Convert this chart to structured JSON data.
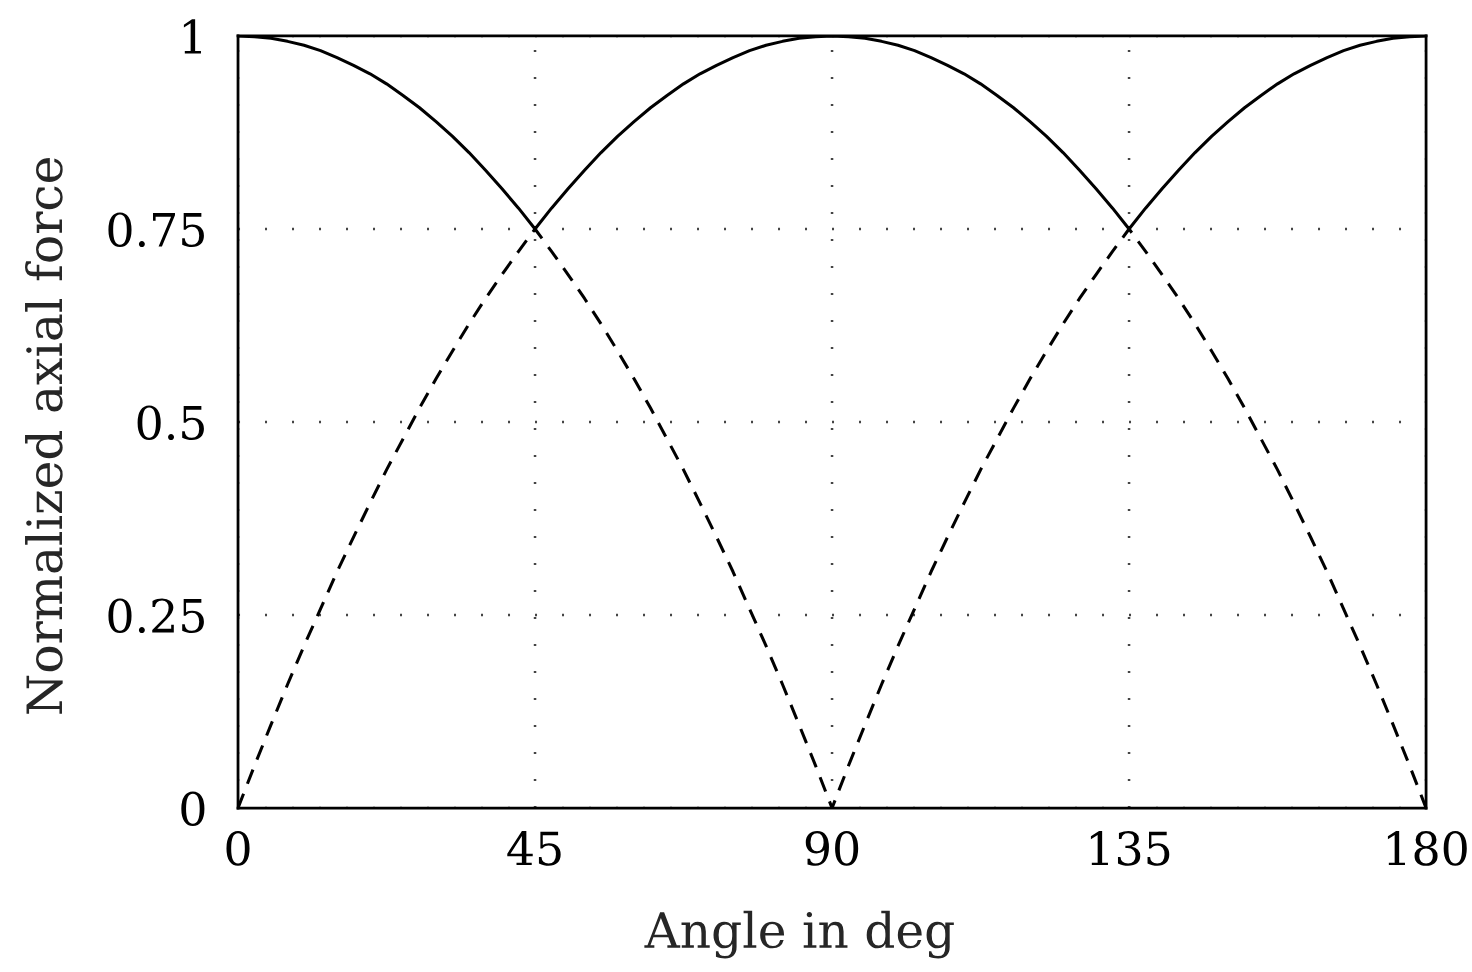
{
  "chart_data": {
    "type": "line",
    "xlabel": "Angle in deg",
    "ylabel": "Normalized axial force",
    "x": [
      0,
      2.5,
      5,
      7.5,
      10,
      12.5,
      15,
      17.5,
      20,
      22.5,
      25,
      27.5,
      30,
      32.5,
      35,
      37.5,
      40,
      42.5,
      45,
      47.5,
      50,
      52.5,
      55,
      57.5,
      60,
      62.5,
      65,
      67.5,
      70,
      72.5,
      75,
      77.5,
      80,
      82.5,
      85,
      87.5,
      90,
      92.5,
      95,
      97.5,
      100,
      102.5,
      105,
      107.5,
      110,
      112.5,
      115,
      117.5,
      120,
      122.5,
      125,
      127.5,
      130,
      132.5,
      135,
      137.5,
      140,
      142.5,
      145,
      147.5,
      150,
      152.5,
      155,
      157.5,
      160,
      162.5,
      165,
      167.5,
      170,
      172.5,
      175,
      177.5,
      180
    ],
    "series": [
      {
        "color": "#000000",
        "line_style": "solid",
        "values": [
          1,
          0.999,
          0.997,
          0.993,
          0.988,
          0.981,
          0.972,
          0.962,
          0.951,
          0.938,
          0.923,
          0.907,
          0.889,
          0.87,
          0.849,
          0.826,
          0.802,
          0.777,
          0.75,
          0.777,
          0.802,
          0.826,
          0.849,
          0.87,
          0.889,
          0.907,
          0.923,
          0.938,
          0.951,
          0.962,
          0.972,
          0.981,
          0.988,
          0.993,
          0.997,
          0.999,
          1,
          0.999,
          0.997,
          0.993,
          0.988,
          0.981,
          0.972,
          0.962,
          0.951,
          0.938,
          0.923,
          0.907,
          0.889,
          0.87,
          0.849,
          0.826,
          0.802,
          0.777,
          0.75,
          0.777,
          0.802,
          0.826,
          0.849,
          0.87,
          0.889,
          0.907,
          0.923,
          0.938,
          0.951,
          0.962,
          0.972,
          0.981,
          0.988,
          0.993,
          0.997,
          0.999,
          1
        ]
      },
      {
        "color": "#000000",
        "line_style": "dashed",
        "values": [
          0,
          0.055,
          0.108,
          0.16,
          0.21,
          0.258,
          0.306,
          0.351,
          0.395,
          0.438,
          0.478,
          0.518,
          0.556,
          0.592,
          0.627,
          0.66,
          0.691,
          0.721,
          0.75,
          0.721,
          0.691,
          0.66,
          0.627,
          0.592,
          0.556,
          0.518,
          0.478,
          0.438,
          0.395,
          0.351,
          0.306,
          0.258,
          0.21,
          0.16,
          0.108,
          0.055,
          0,
          0.055,
          0.108,
          0.16,
          0.21,
          0.258,
          0.306,
          0.351,
          0.395,
          0.438,
          0.478,
          0.518,
          0.556,
          0.592,
          0.627,
          0.66,
          0.691,
          0.721,
          0.75,
          0.721,
          0.691,
          0.66,
          0.627,
          0.592,
          0.556,
          0.518,
          0.478,
          0.438,
          0.395,
          0.351,
          0.306,
          0.258,
          0.21,
          0.16,
          0.108,
          0.055,
          0
        ]
      }
    ],
    "xlim": [
      0,
      180
    ],
    "ylim": [
      0,
      1
    ],
    "xticks": [
      0,
      45,
      90,
      135,
      180
    ],
    "yticks": [
      0,
      0.25,
      0.5,
      0.75,
      1
    ],
    "grid": true
  }
}
